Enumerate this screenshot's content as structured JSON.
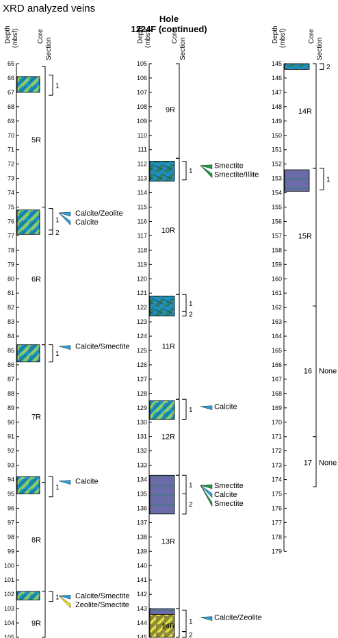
{
  "title": "XRD analyzed veins",
  "hole_label": [
    "Hole",
    "1224F (continued)"
  ],
  "header": {
    "depth": [
      "Depth",
      "(mbsf)"
    ],
    "core": "Core",
    "section": "Section"
  },
  "colors": {
    "vein_blue": "#1e90c8",
    "vein_green": "#8fcf60",
    "basalt_dark": "#2e7d6a",
    "sediment_purple": "#6b6ba8",
    "olive": "#8a8a3a",
    "yellow": "#e8e040",
    "marker_blue": "#2aa0d8",
    "marker_green": "#1e9a48",
    "marker_yellow": "#f0e020"
  },
  "columns": [
    {
      "depth_range": [
        65,
        105
      ],
      "cores": [
        {
          "label": "5R",
          "top": 65.2,
          "bottom": 75.0,
          "label_depth": 70.3
        },
        {
          "label": "6R",
          "top": 75.0,
          "bottom": 84.6,
          "label_depth": 80.0
        },
        {
          "label": "7R",
          "top": 84.6,
          "bottom": 94.2,
          "label_depth": 89.6
        },
        {
          "label": "8R",
          "top": 94.2,
          "bottom": 101.8,
          "label_depth": 98.2
        },
        {
          "label": "9R",
          "top": 101.8,
          "bottom": 105.0,
          "label_depth": 104.0
        }
      ],
      "sections": [
        {
          "label": "1",
          "top": 65.8,
          "bottom": 67.2
        },
        {
          "label": "1",
          "top": 75.1,
          "bottom": 76.6
        },
        {
          "label": "2",
          "top": 76.6,
          "bottom": 76.9
        },
        {
          "label": "1",
          "top": 84.6,
          "bottom": 85.8
        },
        {
          "label": "1",
          "top": 93.8,
          "bottom": 95.2
        },
        {
          "label": "1",
          "top": 101.8,
          "bottom": 102.5
        }
      ],
      "pieces": [
        {
          "type": "vein",
          "top": 65.9,
          "bottom": 67.0
        },
        {
          "type": "vein",
          "top": 75.2,
          "bottom": 76.9
        },
        {
          "type": "vein",
          "top": 84.6,
          "bottom": 85.8
        },
        {
          "type": "vein",
          "top": 93.8,
          "bottom": 95.0
        },
        {
          "type": "vein",
          "top": 101.8,
          "bottom": 102.4
        }
      ],
      "samples": [
        {
          "depth": 75.4,
          "minerals": [
            {
              "name": "Calcite/Zeolite",
              "color": "blue"
            },
            {
              "name": "Calcite",
              "color": "blue"
            }
          ]
        },
        {
          "depth": 84.7,
          "minerals": [
            {
              "name": "Calcite/Smectite",
              "color": "blue"
            }
          ]
        },
        {
          "depth": 94.1,
          "minerals": [
            {
              "name": "Calcite",
              "color": "blue"
            }
          ]
        },
        {
          "depth": 102.1,
          "minerals": [
            {
              "name": "Calcite/Smectite",
              "color": "blue"
            },
            {
              "name": "Zeolite/Smectite",
              "color": "yellow"
            }
          ]
        }
      ]
    },
    {
      "depth_range": [
        105,
        145
      ],
      "cores": [
        {
          "label": "9R",
          "top": 105.0,
          "bottom": 111.6,
          "label_depth": 108.2
        },
        {
          "label": "10R",
          "top": 111.6,
          "bottom": 121.1,
          "label_depth": 116.6
        },
        {
          "label": "11R",
          "top": 121.1,
          "bottom": 128.4,
          "label_depth": 124.7
        },
        {
          "label": "12R",
          "top": 128.4,
          "bottom": 133.7,
          "label_depth": 131.0
        },
        {
          "label": "13R",
          "top": 133.7,
          "bottom": 143.0,
          "label_depth": 138.3
        },
        {
          "label": "14R",
          "top": 143.0,
          "bottom": 145.0,
          "label_depth": 144.2
        }
      ],
      "sections": [
        {
          "label": "1",
          "top": 111.8,
          "bottom": 113.1
        },
        {
          "label": "1",
          "top": 121.1,
          "bottom": 122.3
        },
        {
          "label": "2",
          "top": 122.3,
          "bottom": 122.6
        },
        {
          "label": "1",
          "top": 128.4,
          "bottom": 129.8
        },
        {
          "label": "1",
          "top": 133.7,
          "bottom": 135.0
        },
        {
          "label": "2",
          "top": 135.0,
          "bottom": 136.4
        },
        {
          "label": "1",
          "top": 143.1,
          "bottom": 144.6
        },
        {
          "label": "2",
          "top": 144.6,
          "bottom": 145.0
        }
      ],
      "pieces": [
        {
          "type": "basalt",
          "top": 111.8,
          "bottom": 113.2
        },
        {
          "type": "basalt",
          "top": 121.2,
          "bottom": 122.6
        },
        {
          "type": "vein",
          "top": 128.5,
          "bottom": 129.8
        },
        {
          "type": "sediment",
          "top": 133.7,
          "bottom": 136.4
        },
        {
          "type": "sediment",
          "top": 143.0,
          "bottom": 143.4
        },
        {
          "type": "olive",
          "top": 143.4,
          "bottom": 145.0
        }
      ],
      "samples": [
        {
          "depth": 112.1,
          "minerals": [
            {
              "name": "Smectite",
              "color": "green"
            },
            {
              "name": "Smectite/Illite",
              "color": "green"
            }
          ]
        },
        {
          "depth": 128.9,
          "minerals": [
            {
              "name": "Calcite",
              "color": "blue"
            }
          ]
        },
        {
          "depth": 134.4,
          "minerals": [
            {
              "name": "Smectite",
              "color": "green"
            },
            {
              "name": "Calcite",
              "color": "blue"
            },
            {
              "name": "Smectite",
              "color": "green"
            }
          ]
        },
        {
          "depth": 143.6,
          "minerals": [
            {
              "name": "Calcite/Zeolite",
              "color": "blue"
            }
          ]
        }
      ]
    },
    {
      "depth_range": [
        145,
        179
      ],
      "cores": [
        {
          "label": "14R",
          "top": 145.0,
          "bottom": 152.3,
          "label_depth": 148.3
        },
        {
          "label": "15R",
          "top": 152.3,
          "bottom": 161.9,
          "label_depth": 157.0
        },
        {
          "label": "16",
          "top": 161.9,
          "bottom": 171.0,
          "label_depth": 166.4,
          "note": "None"
        },
        {
          "label": "17",
          "top": 171.0,
          "bottom": 174.5,
          "label_depth": 172.8,
          "note": "None"
        }
      ],
      "sections": [
        {
          "label": "2",
          "top": 145.0,
          "bottom": 145.4
        },
        {
          "label": "1",
          "top": 152.3,
          "bottom": 153.8
        }
      ],
      "pieces": [
        {
          "type": "basalt",
          "top": 145.0,
          "bottom": 145.4
        },
        {
          "type": "sediment",
          "top": 152.4,
          "bottom": 153.9
        }
      ],
      "samples": []
    }
  ]
}
